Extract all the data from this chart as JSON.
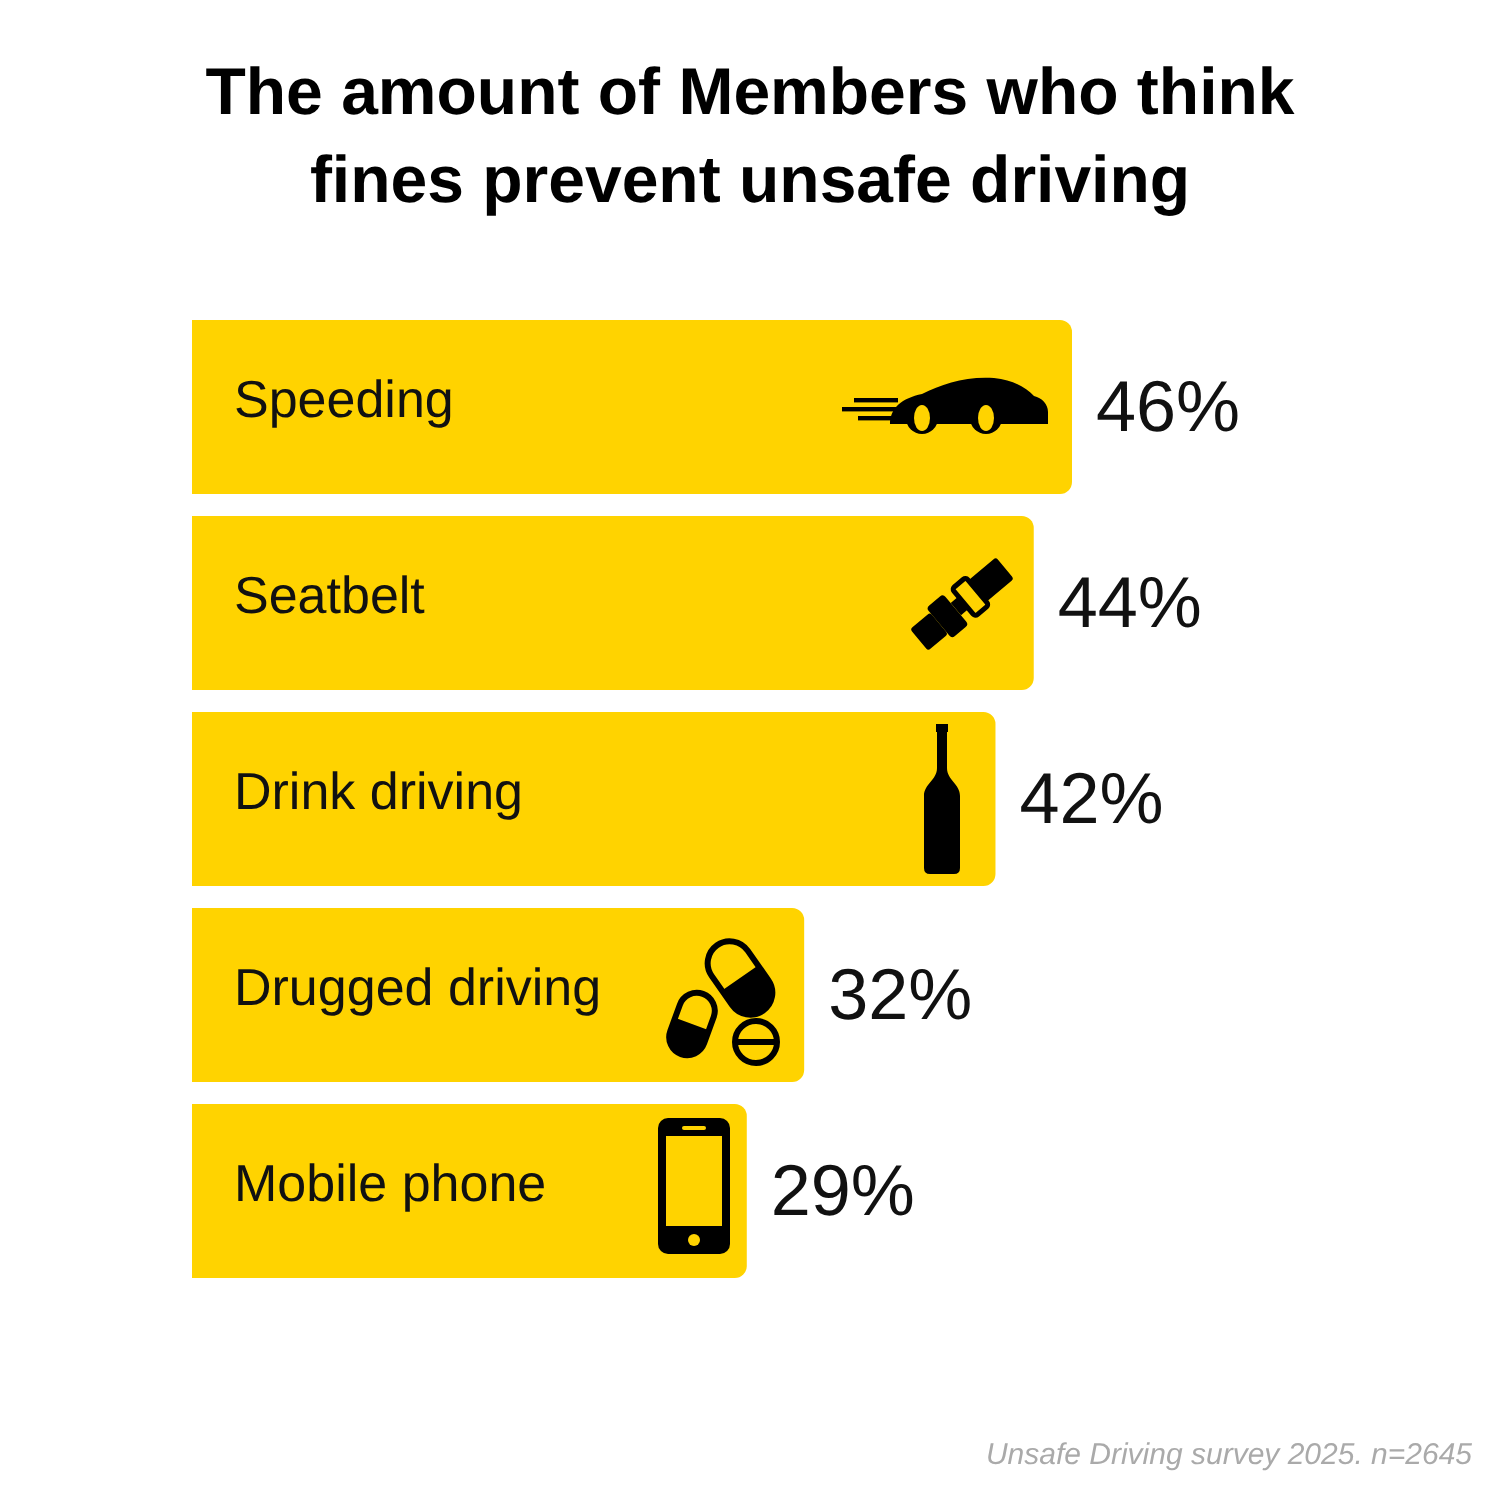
{
  "chart_data": {
    "type": "bar",
    "orientation": "horizontal",
    "title": "The amount of Members who think fines prevent unsafe driving",
    "categories": [
      "Speeding",
      "Seatbelt",
      "Drink driving",
      "Drugged driving",
      "Mobile phone"
    ],
    "values": [
      46,
      44,
      42,
      32,
      29
    ],
    "value_labels": [
      "46%",
      "44%",
      "42%",
      "32%",
      "29%"
    ],
    "color": "#ffd300",
    "annotations": [
      "Unsafe Driving survey 2025. n=2645"
    ]
  }
}
